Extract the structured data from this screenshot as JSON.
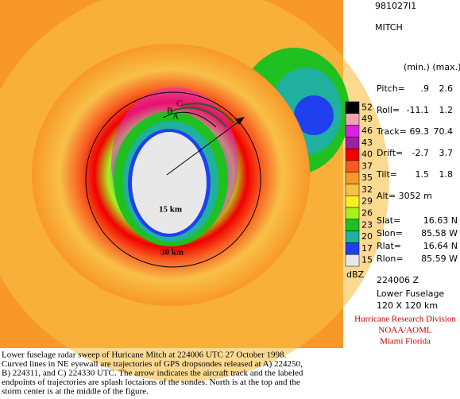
{
  "header": {
    "id": "981027I1",
    "storm": "MITCH"
  },
  "params": {
    "columns": "(min.)  (max.)",
    "rows": [
      {
        "label": "Pitch=",
        "min": ".9",
        "max": "2.6"
      },
      {
        "label": "Roll=",
        "min": "-11.1",
        "max": "1.2"
      },
      {
        "label": "Track=",
        "min": "69.3",
        "max": "70.4"
      },
      {
        "label": "Drift=",
        "min": "-2.7",
        "max": "3.7"
      },
      {
        "label": "Tilt=",
        "min": "1.5",
        "max": "1.8"
      }
    ],
    "alt": "Alt= 3052 m",
    "positions": [
      {
        "label": "Slat=",
        "value": "16.63 N"
      },
      {
        "label": "Slon=",
        "value": "85.58 W"
      },
      {
        "label": "Rlat=",
        "value": "16.64 N"
      },
      {
        "label": "Rlon=",
        "value": "85.59 W"
      }
    ]
  },
  "legend": {
    "unit": "dBZ",
    "items": [
      {
        "label": "52",
        "color": "#000000"
      },
      {
        "label": "49",
        "color": "#f4a0b4"
      },
      {
        "label": "46",
        "color": "#e020e0"
      },
      {
        "label": "43",
        "color": "#a020a0"
      },
      {
        "label": "40",
        "color": "#f00000"
      },
      {
        "label": "37",
        "color": "#f85a20"
      },
      {
        "label": "35",
        "color": "#f89828"
      },
      {
        "label": "32",
        "color": "#f8c048"
      },
      {
        "label": "29",
        "color": "#f8f020"
      },
      {
        "label": "26",
        "color": "#a8f020"
      },
      {
        "label": "23",
        "color": "#20c020"
      },
      {
        "label": "20",
        "color": "#20b0a0"
      },
      {
        "label": "17",
        "color": "#2040f0"
      },
      {
        "label": "15",
        "color": "#e8e8e8"
      }
    ]
  },
  "info": {
    "time": "224006 Z",
    "radar": "Lower Fuselage",
    "size": "120 X 120 km"
  },
  "credit": {
    "org": "Hurricane Research Division",
    "agency": "NOAA/AOML",
    "city": "Miami Florida"
  },
  "image": {
    "ring_inner": "15 km",
    "ring_outer": "30 km",
    "a": "A",
    "b": "B",
    "c": "C"
  },
  "caption": [
    "Lower fuselage radar sweep of Huricane Mitch at 224006 UTC 27 October 1998.",
    "Curved lines in NE eyewall are trajectories of GPS dropsondes released at A) 224250,",
    "B) 224311, and C) 224330 UTC. The arrow indicates the aircraft track and the labeled",
    "endpoints of trajectories are splash loctaions of the sondes. North is at the top and the",
    "storm center is at the middle of the figure."
  ]
}
